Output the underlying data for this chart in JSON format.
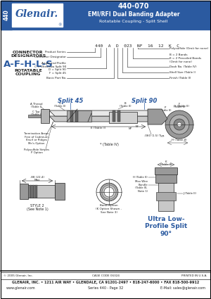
{
  "title_number": "440-070",
  "title_line1": "EMI/RFI Dual Banding Adapter",
  "title_line2": "Rotatable Coupling - Split Shell",
  "series_label": "440",
  "company": "Glenair.",
  "bg_header": "#2b5aa0",
  "bg_white": "#ffffff",
  "text_dark": "#222222",
  "text_blue": "#2b5aa0",
  "connector_designators_label": "CONNECTOR\nDESIGNATORS",
  "designators": "A-F-H-L-S",
  "rotatable": "ROTATABLE\nCOUPLING",
  "part_number_example": "440  A  D  023  NF  16  12  K  C",
  "split45_label": "Split 45",
  "split90_label": "Split 90",
  "footer_company": "GLENAIR, INC. • 1211 AIR WAY • GLENDALE, CA 91201-2497 • 818-247-6000 • FAX 818-500-9912",
  "footer_web": "www.glenair.com",
  "footer_series": "Series 440 - Page 32",
  "footer_email": "E-Mail: sales@glenair.com",
  "copyright": "© 2005 Glenair, Inc.",
  "printed": "PRINTED IN U.S.A.",
  "style2_note": "STYLE 2\n(See Note 1)",
  "ultra_low": "Ultra Low-\nProfile Split\n90°",
  "dim_note1": ".060 (1.5) Typ.",
  "band_option": "Band Option\n(K Option Shown -\nSee Note 3)",
  "main_wire": "Max Wire\nBundle\n(Table III,\nNote 1)",
  "termination": "Termination Areas\nFree of Cadmium,\nKnurl or Ridges\nMn's Option",
  "polysulfide": "Polysulfide Stripes\nP Option",
  "dim_jm": ".88 (22.4)\nMax",
  "pn_labels_left": [
    [
      "Product Series",
      0
    ],
    [
      "Connector Designator",
      1
    ],
    [
      "Angle and Profile\nC = Ultra-Low Split 90\nD = Split 90\nF = Split 45",
      2
    ],
    [
      "Basic Part No.",
      3
    ]
  ],
  "pn_labels_right": [
    [
      "Polysulfide (Omit for none)",
      0
    ],
    [
      "B = 2 Bands\nK = 2 Precoiled Bands\n(Omit for none)",
      1
    ],
    [
      "Dash No. (Table IV)",
      2
    ],
    [
      "Shell Size (Table I)",
      3
    ],
    [
      "Finish (Table II)",
      4
    ]
  ],
  "gray_light": "#c8c8c8",
  "gray_med": "#999999",
  "gray_dark": "#666666"
}
